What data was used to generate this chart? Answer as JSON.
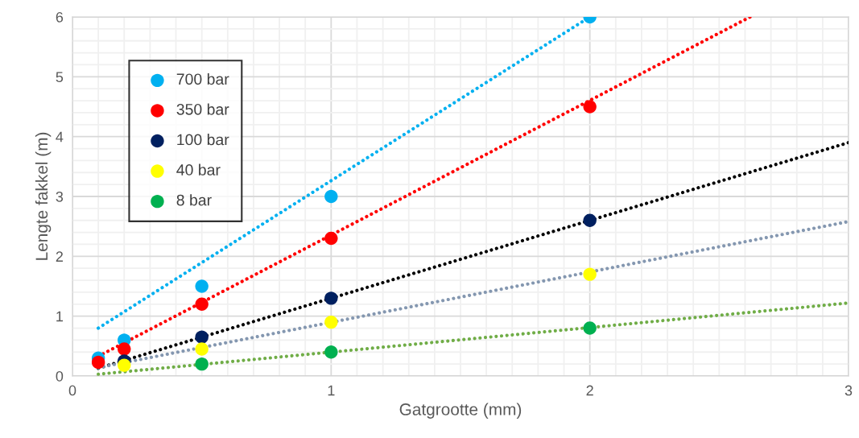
{
  "chart_data": {
    "type": "scatter",
    "xlabel": "Gatgrootte (mm)",
    "ylabel": "Lengte fakkel (m)",
    "x": [
      0.1,
      0.2,
      0.5,
      1,
      2
    ],
    "series": [
      {
        "name": "700 bar",
        "color": "#00b0f0",
        "values": [
          0.3,
          0.6,
          1.5,
          3.0,
          6.0
        ],
        "marker": "circle"
      },
      {
        "name": "350 bar",
        "color": "#ff0000",
        "values": [
          0.23,
          0.45,
          1.2,
          2.3,
          4.5
        ],
        "marker": "circle"
      },
      {
        "name": "100 bar",
        "color": "#002060",
        "values": [
          null,
          0.25,
          0.65,
          1.3,
          2.6
        ],
        "marker": "circle"
      },
      {
        "name": "40 bar",
        "color": "#ffff00",
        "values": [
          null,
          0.18,
          0.45,
          0.9,
          1.7
        ],
        "marker": "circle"
      },
      {
        "name": "8 bar",
        "color": "#00b050",
        "values": [
          null,
          null,
          0.2,
          0.4,
          0.8
        ],
        "marker": "circle"
      },
      {
        "type": "line",
        "color": "#00b0f0",
        "x": [
          0.1,
          2
        ],
        "values": [
          0.8,
          6.0
        ],
        "marker": "none",
        "line_style": "dotted"
      },
      {
        "type": "line",
        "color": "#ff0000",
        "x": [
          0.1,
          2.62
        ],
        "values": [
          0.33,
          6.0
        ],
        "marker": "none",
        "line_style": "dotted"
      },
      {
        "type": "line",
        "color": "#000000",
        "x": [
          0.1,
          3
        ],
        "values": [
          0.13,
          3.9
        ],
        "marker": "none",
        "line_style": "dotted"
      },
      {
        "type": "line",
        "color": "#8497b0",
        "x": [
          0.1,
          3
        ],
        "values": [
          0.14,
          2.58
        ],
        "marker": "none",
        "line_style": "dotted"
      },
      {
        "type": "line",
        "color": "#70ad47",
        "x": [
          0.1,
          3
        ],
        "values": [
          0.03,
          1.22
        ],
        "marker": "none",
        "line_style": "dotted"
      }
    ],
    "xlim": [
      0,
      3
    ],
    "xticks": [
      0,
      1,
      2,
      3
    ],
    "ylim": [
      0,
      6
    ],
    "yticks": [
      0,
      1,
      2,
      3,
      4,
      5,
      6
    ],
    "grid": true,
    "legend": "top left"
  }
}
